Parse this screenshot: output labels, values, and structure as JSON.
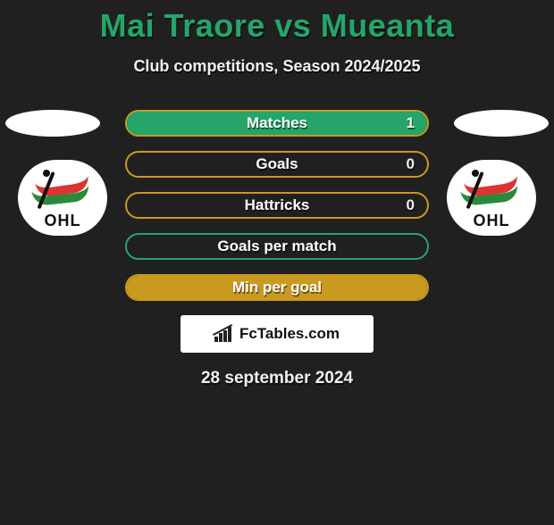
{
  "title": "Mai Traore vs Mueanta",
  "subtitle": "Club competitions, Season 2024/2025",
  "colors": {
    "title": "#25a56a",
    "background": "#202020"
  },
  "left_team": {
    "logo_text": "OHL"
  },
  "right_team": {
    "logo_text": "OHL"
  },
  "stats": [
    {
      "label": "Matches",
      "value": "1",
      "border": "#c99a1f",
      "fill": "#25a56a",
      "fill_pct": 100
    },
    {
      "label": "Goals",
      "value": "0",
      "border": "#c99a1f",
      "fill": "#25a56a",
      "fill_pct": 0
    },
    {
      "label": "Hattricks",
      "value": "0",
      "border": "#c99a1f",
      "fill": "#25a56a",
      "fill_pct": 0
    },
    {
      "label": "Goals per match",
      "value": "",
      "border": "#25a56a",
      "fill": "#25a56a",
      "fill_pct": 0
    },
    {
      "label": "Min per goal",
      "value": "",
      "border": "#c99a1f",
      "fill": "#c99a1f",
      "fill_pct": 100
    }
  ],
  "brand": "FcTables.com",
  "date": "28 september 2024"
}
